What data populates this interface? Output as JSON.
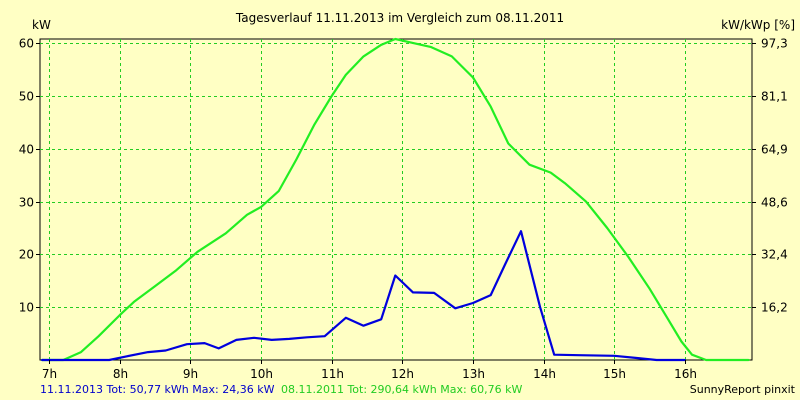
{
  "colors": {
    "background": "#ffffc4",
    "plot_background": "#ffffc4",
    "grid": "#22cc22",
    "series_2013": "#0000dd",
    "series_2011": "#22ee22",
    "footer_2013": "#0000cc",
    "footer_2011": "#22cc22"
  },
  "footer": {
    "series_2013_text": "11.11.2013 Tot: 50,77 kWh Max: 24,36 kW",
    "series_2011_text": "08.11.2011 Tot: 290,64 kWh Max: 60,76 kW",
    "credit": "SunnyReport pinxit"
  },
  "chart_data": {
    "type": "line",
    "title": "Tagesverlauf 11.11.2013 im Vergleich zum 08.11.2011",
    "ylabel_left": "kW",
    "ylabel_right": "kW/kWp [%]",
    "grid": true,
    "xlim": [
      6.87,
      16.95
    ],
    "ylim": [
      0,
      60.8
    ],
    "x_ticks": [
      {
        "v": 7,
        "label": "7h"
      },
      {
        "v": 8,
        "label": "8h"
      },
      {
        "v": 9,
        "label": "9h"
      },
      {
        "v": 10,
        "label": "10h"
      },
      {
        "v": 11,
        "label": "11h"
      },
      {
        "v": 12,
        "label": "12h"
      },
      {
        "v": 13,
        "label": "13h"
      },
      {
        "v": 14,
        "label": "14h"
      },
      {
        "v": 15,
        "label": "15h"
      },
      {
        "v": 16,
        "label": "16h"
      }
    ],
    "y_ticks_left": [
      {
        "v": 10,
        "label": "10"
      },
      {
        "v": 20,
        "label": "20"
      },
      {
        "v": 30,
        "label": "30"
      },
      {
        "v": 40,
        "label": "40"
      },
      {
        "v": 50,
        "label": "50"
      },
      {
        "v": 60,
        "label": "60"
      }
    ],
    "y_ticks_right": [
      {
        "v": 10,
        "label": "16,2"
      },
      {
        "v": 20,
        "label": "32,4"
      },
      {
        "v": 30,
        "label": "48,6"
      },
      {
        "v": 40,
        "label": "64,9"
      },
      {
        "v": 50,
        "label": "81,1"
      },
      {
        "v": 60,
        "label": "97,3"
      }
    ],
    "series": [
      {
        "key": "s2011",
        "legend": "08.11.2011",
        "color": "#22ee22",
        "points": [
          [
            6.9,
            0.0
          ],
          [
            7.2,
            0.0
          ],
          [
            7.45,
            1.5
          ],
          [
            7.7,
            4.5
          ],
          [
            8.0,
            8.5
          ],
          [
            8.2,
            11.0
          ],
          [
            8.5,
            14.0
          ],
          [
            8.8,
            17.0
          ],
          [
            9.1,
            20.5
          ],
          [
            9.5,
            24.0
          ],
          [
            9.8,
            27.5
          ],
          [
            10.0,
            29.0
          ],
          [
            10.25,
            32.0
          ],
          [
            10.5,
            38.0
          ],
          [
            10.75,
            44.5
          ],
          [
            11.0,
            50.0
          ],
          [
            11.2,
            54.0
          ],
          [
            11.45,
            57.5
          ],
          [
            11.7,
            59.7
          ],
          [
            11.9,
            60.8
          ],
          [
            12.1,
            60.2
          ],
          [
            12.4,
            59.3
          ],
          [
            12.7,
            57.5
          ],
          [
            13.0,
            53.5
          ],
          [
            13.25,
            48.0
          ],
          [
            13.5,
            41.0
          ],
          [
            13.8,
            37.0
          ],
          [
            14.1,
            35.5
          ],
          [
            14.3,
            33.5
          ],
          [
            14.6,
            30.0
          ],
          [
            14.9,
            25.0
          ],
          [
            15.2,
            19.5
          ],
          [
            15.5,
            13.5
          ],
          [
            15.75,
            8.0
          ],
          [
            15.95,
            3.5
          ],
          [
            16.1,
            1.0
          ],
          [
            16.3,
            0.0
          ],
          [
            16.9,
            0.0
          ]
        ]
      },
      {
        "key": "s2013",
        "legend": "11.11.2013",
        "color": "#0000dd",
        "points": [
          [
            6.9,
            0.0
          ],
          [
            7.85,
            0.0
          ],
          [
            8.1,
            0.7
          ],
          [
            8.4,
            1.5
          ],
          [
            8.65,
            1.8
          ],
          [
            8.95,
            3.0
          ],
          [
            9.2,
            3.2
          ],
          [
            9.4,
            2.2
          ],
          [
            9.65,
            3.8
          ],
          [
            9.9,
            4.2
          ],
          [
            10.15,
            3.8
          ],
          [
            10.4,
            4.0
          ],
          [
            10.65,
            4.3
          ],
          [
            10.9,
            4.5
          ],
          [
            11.2,
            8.0
          ],
          [
            11.45,
            6.5
          ],
          [
            11.7,
            7.7
          ],
          [
            11.9,
            16.0
          ],
          [
            12.15,
            12.8
          ],
          [
            12.45,
            12.7
          ],
          [
            12.75,
            9.8
          ],
          [
            13.0,
            10.8
          ],
          [
            13.25,
            12.3
          ],
          [
            13.45,
            18.0
          ],
          [
            13.68,
            24.4
          ],
          [
            13.95,
            10.0
          ],
          [
            14.15,
            1.0
          ],
          [
            14.5,
            0.9
          ],
          [
            15.0,
            0.8
          ],
          [
            15.3,
            0.4
          ],
          [
            15.6,
            0.0
          ],
          [
            16.0,
            0.0
          ]
        ]
      }
    ]
  }
}
